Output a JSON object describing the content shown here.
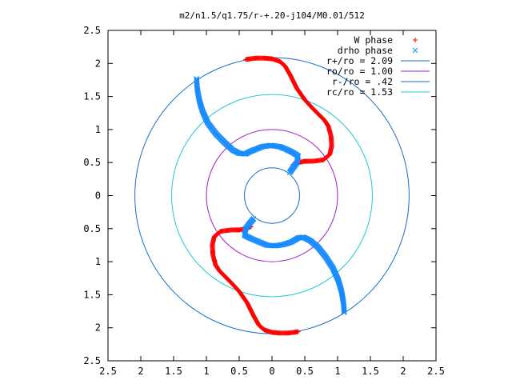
{
  "chart_data": {
    "type": "scatter",
    "title": "m2/n1.5/q1.75/r-+.20-j104/M0.01/512",
    "xlabel": "",
    "ylabel": "",
    "xlim": [
      -2.5,
      2.5
    ],
    "ylim": [
      -2.5,
      2.5
    ],
    "x_ticks": [
      -2.5,
      -2,
      -1.5,
      -1,
      -0.5,
      0,
      0.5,
      1,
      1.5,
      2,
      2.5
    ],
    "x_tick_labels": [
      "2.5",
      "2",
      "1.5",
      "1",
      "0.5",
      "0",
      "0.5",
      "1",
      "1.5",
      "2",
      "2.5"
    ],
    "y_ticks": [
      2.5,
      2,
      1.5,
      1,
      0.5,
      0,
      -0.5,
      -1,
      -1.5,
      -2,
      -2.5
    ],
    "y_tick_labels": [
      "2.5",
      "2",
      "1.5",
      "1",
      "0.5",
      "0",
      "0.5",
      "1",
      "1.5",
      "2",
      "2.5"
    ],
    "grid": false,
    "legend_position": "top-right",
    "circles": [
      {
        "label": "r+/ro = 2.09",
        "radius": 2.09,
        "color": "#1a6ec8"
      },
      {
        "label": "ro/ro = 1.00",
        "radius": 1.0,
        "color": "#a020c8"
      },
      {
        "label": "r-/ro = .42",
        "radius": 0.42,
        "color": "#1a6ec8"
      },
      {
        "label": "rc/ro = 1.53",
        "radius": 1.53,
        "color": "#20c8d8"
      }
    ],
    "series": [
      {
        "name": "W phase",
        "marker": "plus",
        "color": "#ff0000",
        "branches": [
          [
            [
              -0.4,
              2.06
            ],
            [
              -0.25,
              2.08
            ],
            [
              -0.12,
              2.08
            ],
            [
              0.0,
              2.07
            ],
            [
              0.12,
              2.03
            ],
            [
              0.2,
              1.96
            ],
            [
              0.28,
              1.82
            ],
            [
              0.38,
              1.62
            ],
            [
              0.5,
              1.45
            ],
            [
              0.62,
              1.32
            ],
            [
              0.72,
              1.22
            ],
            [
              0.8,
              1.14
            ],
            [
              0.86,
              1.05
            ],
            [
              0.9,
              0.9
            ],
            [
              0.91,
              0.75
            ],
            [
              0.88,
              0.62
            ],
            [
              0.78,
              0.54
            ],
            [
              0.62,
              0.52
            ],
            [
              0.5,
              0.52
            ],
            [
              0.4,
              0.5
            ],
            [
              0.32,
              0.47
            ]
          ],
          [
            [
              0.4,
              -2.06
            ],
            [
              0.25,
              -2.08
            ],
            [
              0.12,
              -2.08
            ],
            [
              0.0,
              -2.07
            ],
            [
              -0.12,
              -2.03
            ],
            [
              -0.2,
              -1.96
            ],
            [
              -0.28,
              -1.82
            ],
            [
              -0.38,
              -1.62
            ],
            [
              -0.5,
              -1.45
            ],
            [
              -0.62,
              -1.32
            ],
            [
              -0.72,
              -1.22
            ],
            [
              -0.8,
              -1.14
            ],
            [
              -0.86,
              -1.05
            ],
            [
              -0.9,
              -0.9
            ],
            [
              -0.91,
              -0.75
            ],
            [
              -0.88,
              -0.62
            ],
            [
              -0.78,
              -0.54
            ],
            [
              -0.62,
              -0.52
            ],
            [
              -0.5,
              -0.52
            ],
            [
              -0.4,
              -0.5
            ],
            [
              -0.32,
              -0.47
            ]
          ]
        ]
      },
      {
        "name": "drho phase",
        "marker": "cross",
        "color": "#1a8cff",
        "branches": [
          [
            [
              -1.15,
              1.77
            ],
            [
              -1.14,
              1.62
            ],
            [
              -1.11,
              1.45
            ],
            [
              -1.06,
              1.28
            ],
            [
              -0.98,
              1.1
            ],
            [
              -0.85,
              0.93
            ],
            [
              -0.72,
              0.8
            ],
            [
              -0.6,
              0.69
            ],
            [
              -0.5,
              0.64
            ],
            [
              -0.4,
              0.63
            ],
            [
              -0.35,
              0.66
            ],
            [
              -0.25,
              0.7
            ],
            [
              -0.15,
              0.74
            ],
            [
              -0.02,
              0.76
            ],
            [
              0.12,
              0.74
            ],
            [
              0.22,
              0.7
            ],
            [
              0.32,
              0.65
            ],
            [
              0.4,
              0.6
            ],
            [
              0.38,
              0.5
            ],
            [
              0.32,
              0.42
            ],
            [
              0.27,
              0.35
            ]
          ],
          [
            [
              1.1,
              -1.77
            ],
            [
              1.09,
              -1.62
            ],
            [
              1.06,
              -1.45
            ],
            [
              1.01,
              -1.28
            ],
            [
              0.93,
              -1.1
            ],
            [
              0.82,
              -0.93
            ],
            [
              0.7,
              -0.78
            ],
            [
              0.58,
              -0.68
            ],
            [
              0.48,
              -0.63
            ],
            [
              0.4,
              -0.64
            ],
            [
              0.3,
              -0.7
            ],
            [
              0.18,
              -0.74
            ],
            [
              0.05,
              -0.76
            ],
            [
              -0.08,
              -0.75
            ],
            [
              -0.2,
              -0.7
            ],
            [
              -0.32,
              -0.65
            ],
            [
              -0.42,
              -0.6
            ],
            [
              -0.4,
              -0.5
            ],
            [
              -0.34,
              -0.42
            ],
            [
              -0.28,
              -0.35
            ]
          ]
        ]
      }
    ]
  }
}
